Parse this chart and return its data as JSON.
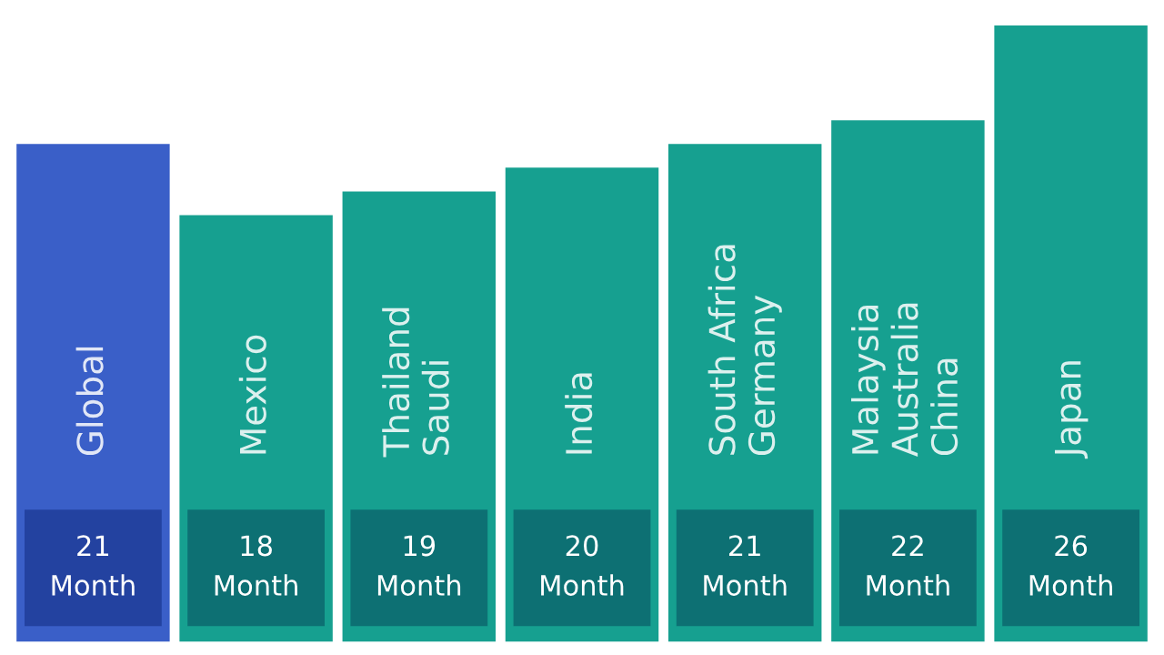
{
  "chart_data": {
    "type": "bar",
    "relative": false,
    "categories": [
      "Global",
      "Mexico",
      "Thailand\nSaudi",
      "India",
      "South Africa\nGermany",
      "Malaysia\nAustralia\nChina",
      "Japan"
    ],
    "values": [
      21,
      18,
      19,
      20,
      21,
      22,
      26
    ],
    "colors": [
      "#3a5fc8",
      "#16a090",
      "#16a090",
      "#16a090",
      "#16a090",
      "#16a090",
      "#16a090"
    ],
    "value_labels": [
      "21\nMonth",
      "18\nMonth",
      "19\nMonth",
      "20\nMonth",
      "21\nMonth",
      "22\nMonth",
      "26\nMonth"
    ],
    "tick_labels": false
  }
}
